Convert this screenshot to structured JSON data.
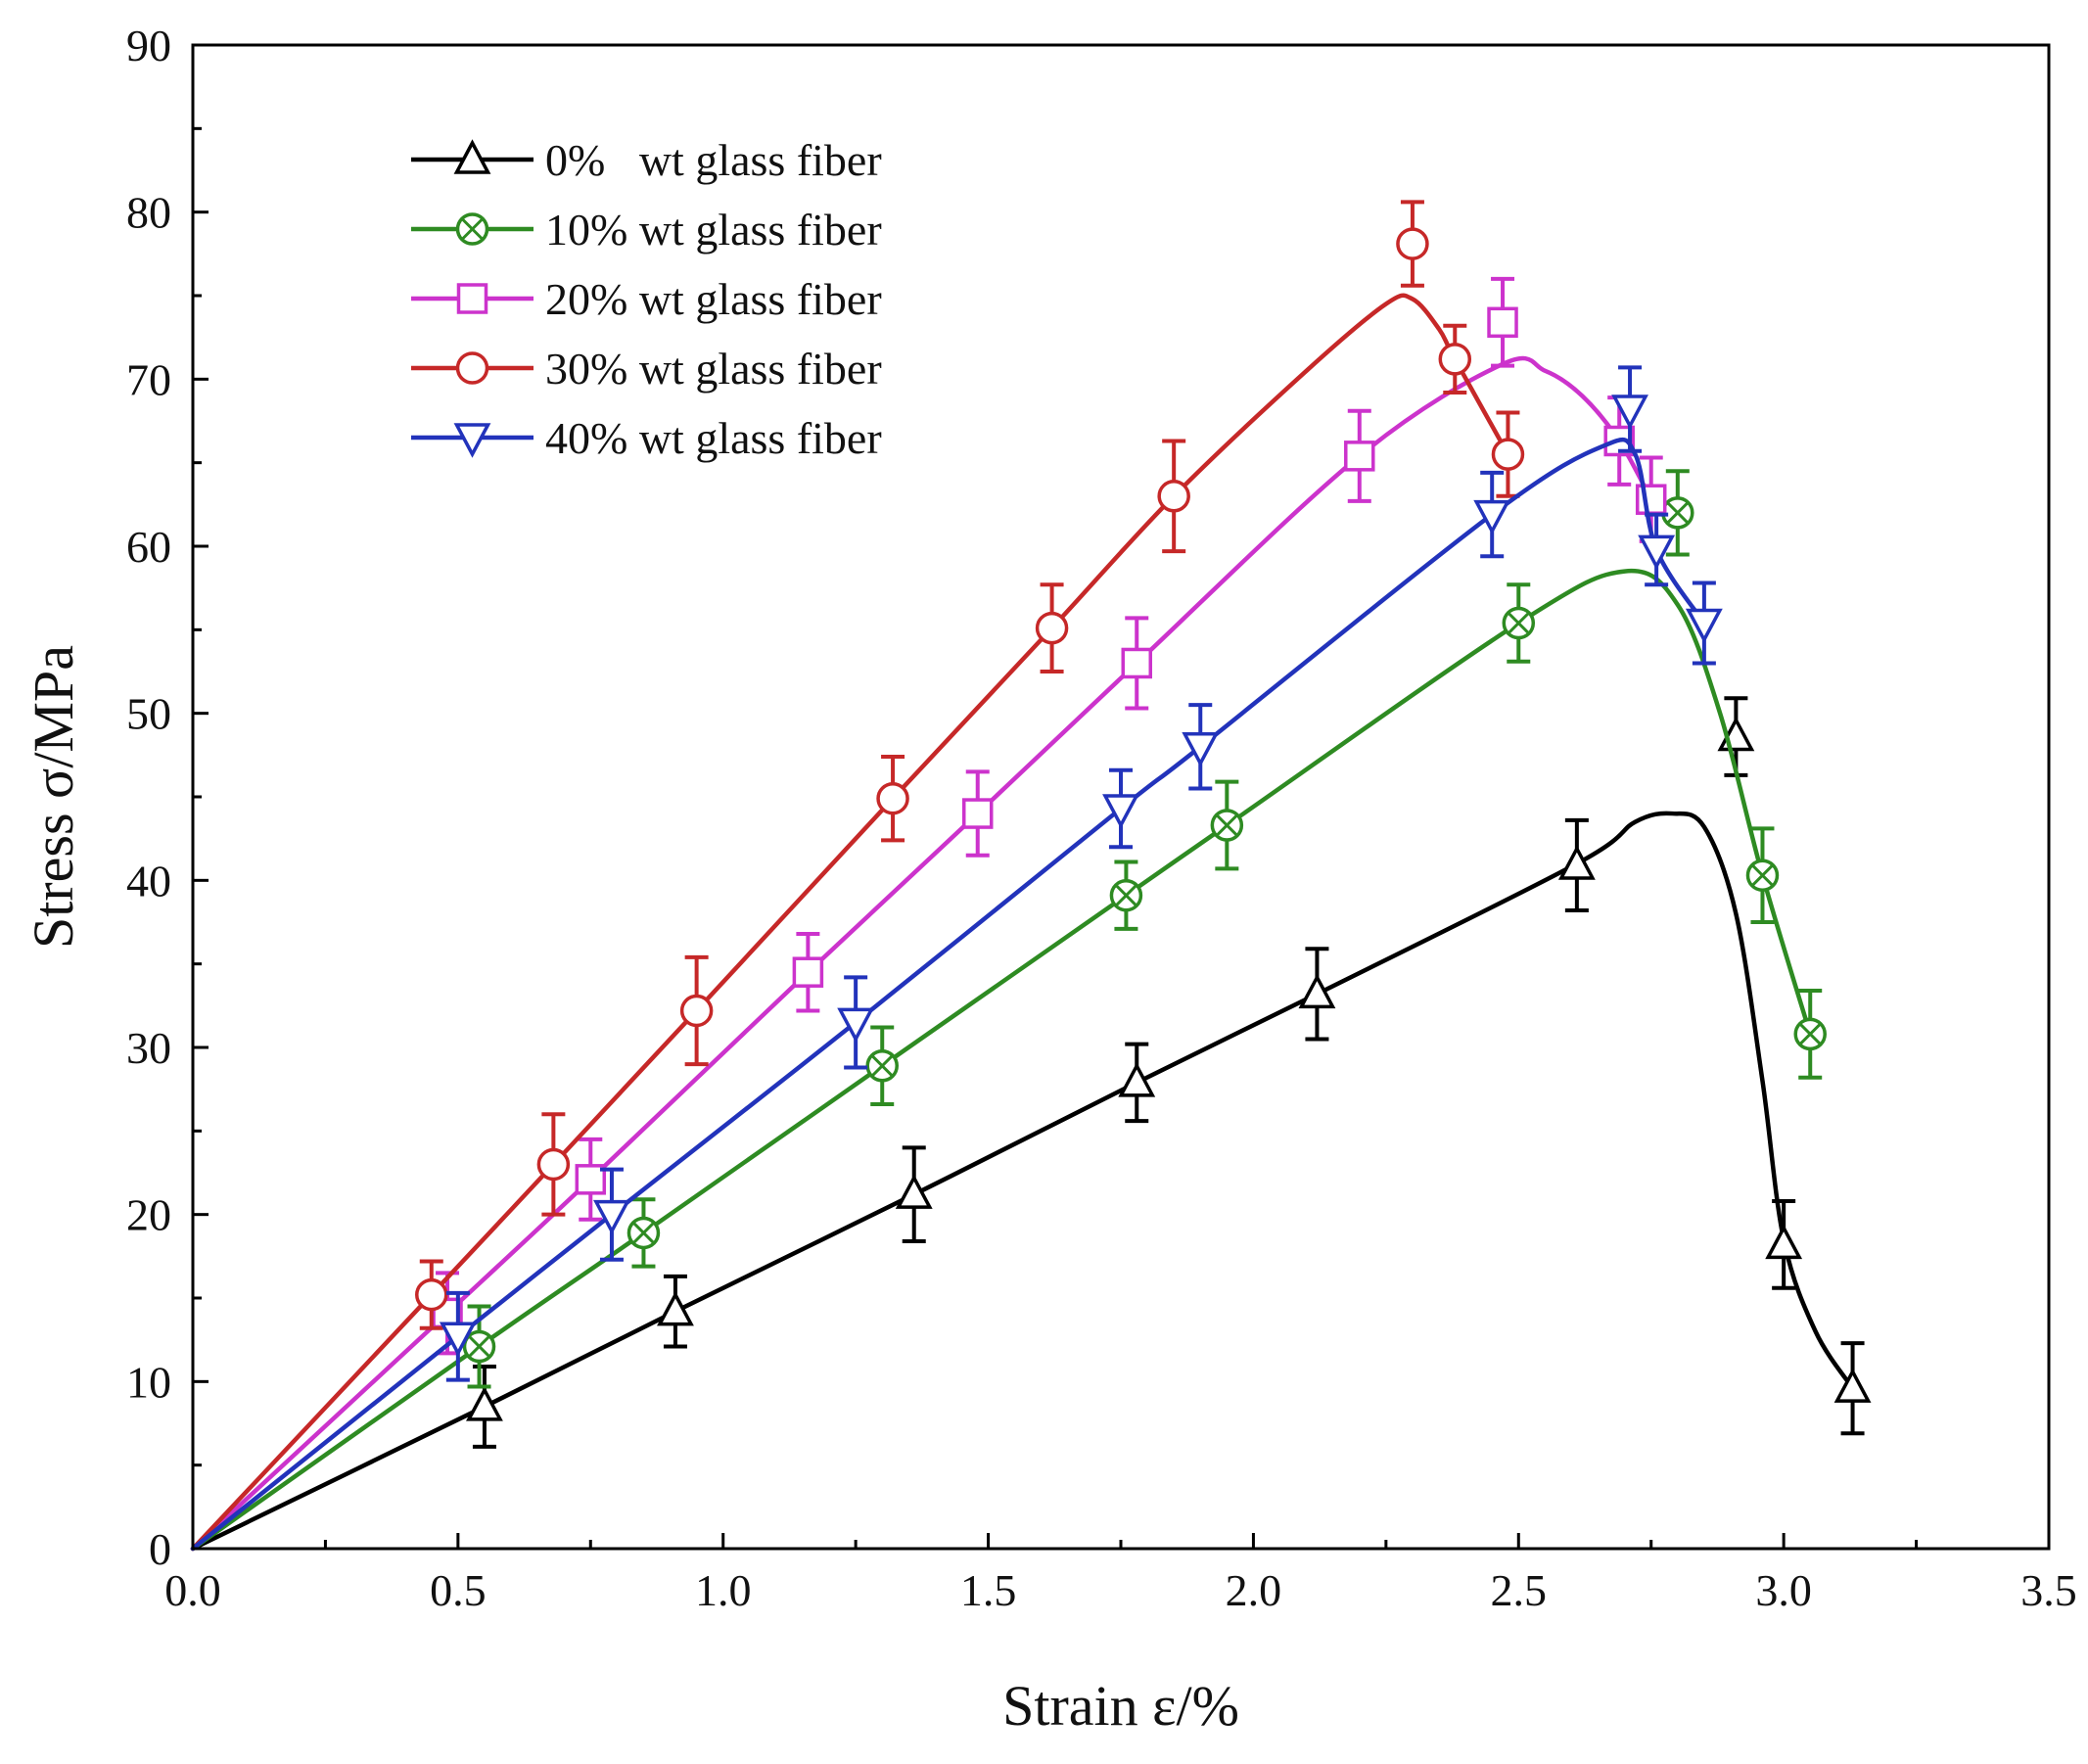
{
  "chart_data": {
    "type": "line",
    "title": "",
    "xlabel": "Strain ε/%",
    "ylabel": "Stress σ/MPa",
    "xlim": [
      0,
      3.5
    ],
    "ylim": [
      0,
      90
    ],
    "xticks": [
      0,
      0.5,
      1.0,
      1.5,
      2.0,
      2.5,
      3.0,
      3.5
    ],
    "xtick_labels": [
      "0.0",
      "0.5",
      "1.0",
      "1.5",
      "2.0",
      "2.5",
      "3.0",
      "3.5"
    ],
    "yticks": [
      0,
      10,
      20,
      30,
      40,
      50,
      60,
      70,
      80,
      90
    ],
    "ytick_labels": [
      "0",
      "10",
      "20",
      "30",
      "40",
      "50",
      "60",
      "70",
      "80",
      "90"
    ],
    "legend_position": "top-left",
    "series": [
      {
        "name": "0%   wt glass fiber",
        "color": "#000000",
        "marker": "triangle-up",
        "curve": [
          [
            0,
            0
          ],
          [
            0.55,
            8.5
          ],
          [
            0.91,
            14.2
          ],
          [
            1.36,
            21.2
          ],
          [
            1.78,
            27.9
          ],
          [
            2.12,
            33.2
          ],
          [
            2.61,
            41
          ],
          [
            2.72,
            43.5
          ],
          [
            2.79,
            44
          ],
          [
            2.85,
            43.2
          ],
          [
            2.91,
            38
          ],
          [
            2.96,
            28
          ],
          [
            3.0,
            18.5
          ],
          [
            3.06,
            13
          ],
          [
            3.13,
            9.6
          ]
        ],
        "points": [
          {
            "x": 0.55,
            "y": 8.5,
            "err": 2.4
          },
          {
            "x": 0.91,
            "y": 14.2,
            "err": 2.1
          },
          {
            "x": 1.36,
            "y": 21.2,
            "err": 2.8
          },
          {
            "x": 1.78,
            "y": 27.9,
            "err": 2.3
          },
          {
            "x": 2.12,
            "y": 33.2,
            "err": 2.7
          },
          {
            "x": 2.61,
            "y": 40.9,
            "err": 2.7
          },
          {
            "x": 2.91,
            "y": 48.6,
            "err": 2.3
          },
          {
            "x": 3.0,
            "y": 18.2,
            "err": 2.6
          },
          {
            "x": 3.13,
            "y": 9.6,
            "err": 2.7
          }
        ]
      },
      {
        "name": "10% wt glass fiber",
        "color": "#2e8b22",
        "marker": "circle-x",
        "curve": [
          [
            0,
            0
          ],
          [
            0.54,
            12.1
          ],
          [
            0.85,
            18.9
          ],
          [
            1.3,
            28.9
          ],
          [
            1.76,
            39.1
          ],
          [
            1.95,
            43.3
          ],
          [
            2.5,
            55.4
          ],
          [
            2.7,
            58.5
          ],
          [
            2.8,
            56.5
          ],
          [
            2.88,
            50
          ],
          [
            2.96,
            40.3
          ],
          [
            3.05,
            30.8
          ]
        ],
        "points": [
          {
            "x": 0.54,
            "y": 12.1,
            "err": 2.4
          },
          {
            "x": 0.85,
            "y": 18.9,
            "err": 2.0
          },
          {
            "x": 1.3,
            "y": 28.9,
            "err": 2.3
          },
          {
            "x": 1.76,
            "y": 39.1,
            "err": 2.0
          },
          {
            "x": 1.95,
            "y": 43.3,
            "err": 2.6
          },
          {
            "x": 2.5,
            "y": 55.4,
            "err": 2.3
          },
          {
            "x": 2.8,
            "y": 62.0,
            "err": 2.5
          },
          {
            "x": 2.96,
            "y": 40.3,
            "err": 2.8
          },
          {
            "x": 3.05,
            "y": 30.8,
            "err": 2.6
          }
        ]
      },
      {
        "name": "20% wt glass fiber",
        "color": "#cc33cc",
        "marker": "square",
        "curve": [
          [
            0,
            0
          ],
          [
            0.48,
            14.1
          ],
          [
            0.75,
            22.1
          ],
          [
            1.16,
            34.5
          ],
          [
            1.48,
            44.0
          ],
          [
            1.78,
            53.0
          ],
          [
            2.2,
            65.4
          ],
          [
            2.47,
            70.9
          ],
          [
            2.55,
            70.5
          ],
          [
            2.62,
            69
          ],
          [
            2.69,
            66.3
          ],
          [
            2.75,
            62.8
          ]
        ],
        "points": [
          {
            "x": 0.48,
            "y": 14.1,
            "err": 2.4
          },
          {
            "x": 0.75,
            "y": 22.1,
            "err": 2.4
          },
          {
            "x": 1.16,
            "y": 34.5,
            "err": 2.3
          },
          {
            "x": 1.48,
            "y": 44.0,
            "err": 2.5
          },
          {
            "x": 1.78,
            "y": 53.0,
            "err": 2.7
          },
          {
            "x": 2.2,
            "y": 65.4,
            "err": 2.7
          },
          {
            "x": 2.47,
            "y": 73.4,
            "err": 2.6
          },
          {
            "x": 2.69,
            "y": 66.3,
            "err": 2.6
          },
          {
            "x": 2.75,
            "y": 62.8,
            "err": 2.5
          }
        ]
      },
      {
        "name": "30% wt glass fiber",
        "color": "#c62828",
        "marker": "circle",
        "curve": [
          [
            0,
            0
          ],
          [
            0.45,
            15.2
          ],
          [
            0.68,
            23.0
          ],
          [
            0.95,
            32.2
          ],
          [
            1.32,
            44.9
          ],
          [
            1.62,
            55.1
          ],
          [
            1.85,
            63.0
          ],
          [
            2.1,
            70.5
          ],
          [
            2.25,
            74.5
          ],
          [
            2.3,
            74.8
          ],
          [
            2.35,
            73
          ],
          [
            2.38,
            71.2
          ],
          [
            2.48,
            65.5
          ]
        ],
        "points": [
          {
            "x": 0.45,
            "y": 15.2,
            "err": 2.0
          },
          {
            "x": 0.68,
            "y": 23.0,
            "err": 3.0
          },
          {
            "x": 0.95,
            "y": 32.2,
            "err": 3.2
          },
          {
            "x": 1.32,
            "y": 44.9,
            "err": 2.5
          },
          {
            "x": 1.62,
            "y": 55.1,
            "err": 2.6
          },
          {
            "x": 1.85,
            "y": 63.0,
            "err": 3.3
          },
          {
            "x": 2.3,
            "y": 78.1,
            "err": 2.5
          },
          {
            "x": 2.38,
            "y": 71.2,
            "err": 2.0
          },
          {
            "x": 2.48,
            "y": 65.5,
            "err": 2.5
          }
        ]
      },
      {
        "name": "40% wt glass fiber",
        "color": "#2233bb",
        "marker": "triangle-down",
        "curve": [
          [
            0,
            0
          ],
          [
            0.5,
            12.7
          ],
          [
            0.79,
            20.0
          ],
          [
            1.25,
            31.5
          ],
          [
            1.75,
            44.3
          ],
          [
            1.9,
            48.0
          ],
          [
            2.45,
            61.9
          ],
          [
            2.66,
            66.0
          ],
          [
            2.72,
            65.5
          ],
          [
            2.76,
            59.8
          ],
          [
            2.85,
            55.4
          ]
        ],
        "points": [
          {
            "x": 0.5,
            "y": 12.7,
            "err": 2.6
          },
          {
            "x": 0.79,
            "y": 20.0,
            "err": 2.7
          },
          {
            "x": 1.25,
            "y": 31.5,
            "err": 2.7
          },
          {
            "x": 1.75,
            "y": 44.3,
            "err": 2.3
          },
          {
            "x": 1.9,
            "y": 48.0,
            "err": 2.5
          },
          {
            "x": 2.45,
            "y": 61.9,
            "err": 2.5
          },
          {
            "x": 2.71,
            "y": 68.2,
            "err": 2.5
          },
          {
            "x": 2.76,
            "y": 59.8,
            "err": 2.1
          },
          {
            "x": 2.85,
            "y": 55.4,
            "err": 2.4
          }
        ]
      }
    ]
  }
}
